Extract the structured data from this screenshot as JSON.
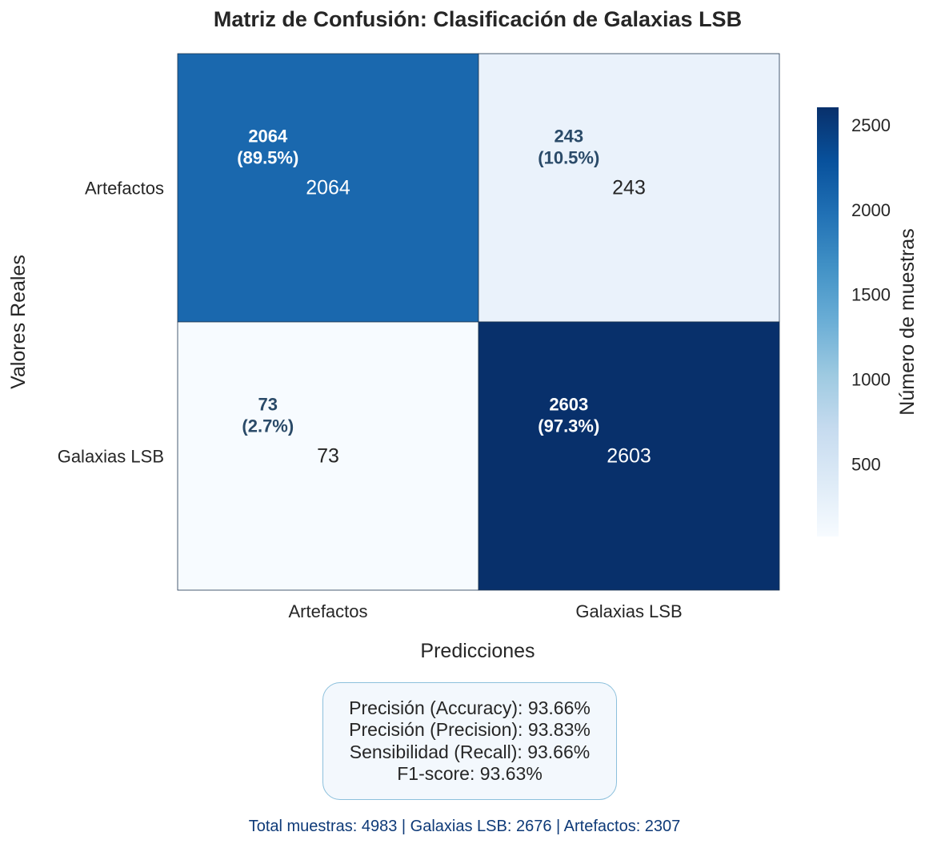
{
  "chart_data": {
    "type": "heatmap",
    "title": "Matriz de Confusión: Clasificación de Galaxias LSB",
    "xlabel": "Predicciones",
    "ylabel": "Valores Reales",
    "x_categories": [
      "Artefactos",
      "Galaxias LSB"
    ],
    "y_categories": [
      "Artefactos",
      "Galaxias LSB"
    ],
    "matrix": [
      [
        2064,
        243
      ],
      [
        73,
        2603
      ]
    ],
    "cell_labels": [
      [
        {
          "count": "2064",
          "percent": "(89.5%)"
        },
        {
          "count": "243",
          "percent": "(10.5%)"
        }
      ],
      [
        {
          "count": "73",
          "percent": "(2.7%)"
        },
        {
          "count": "2603",
          "percent": "(97.3%)"
        }
      ]
    ],
    "colormap": "Blues",
    "color_range": [
      73,
      2603
    ],
    "colorbar": {
      "label": "Número de muestras",
      "ticks": [
        500,
        1000,
        1500,
        2000,
        2500
      ],
      "tick_labels": [
        "500",
        "1000",
        "1500",
        "2000",
        "2500"
      ]
    }
  },
  "metrics": [
    "Precisión (Accuracy): 93.66%",
    "Precisión (Precision): 93.83%",
    "Sensibilidad (Recall): 93.66%",
    "F1-score: 93.63%"
  ],
  "footer": "Total muestras: 4983 | Galaxias LSB: 2676 | Artefactos: 2307",
  "colors": {
    "annot_light": "#ffffff",
    "annot_dark": "#2a4a68",
    "text": "#262626",
    "box_border": "#8cc0dc",
    "box_fill": "#f3f8fd",
    "footer_text": "#0e3a78"
  }
}
